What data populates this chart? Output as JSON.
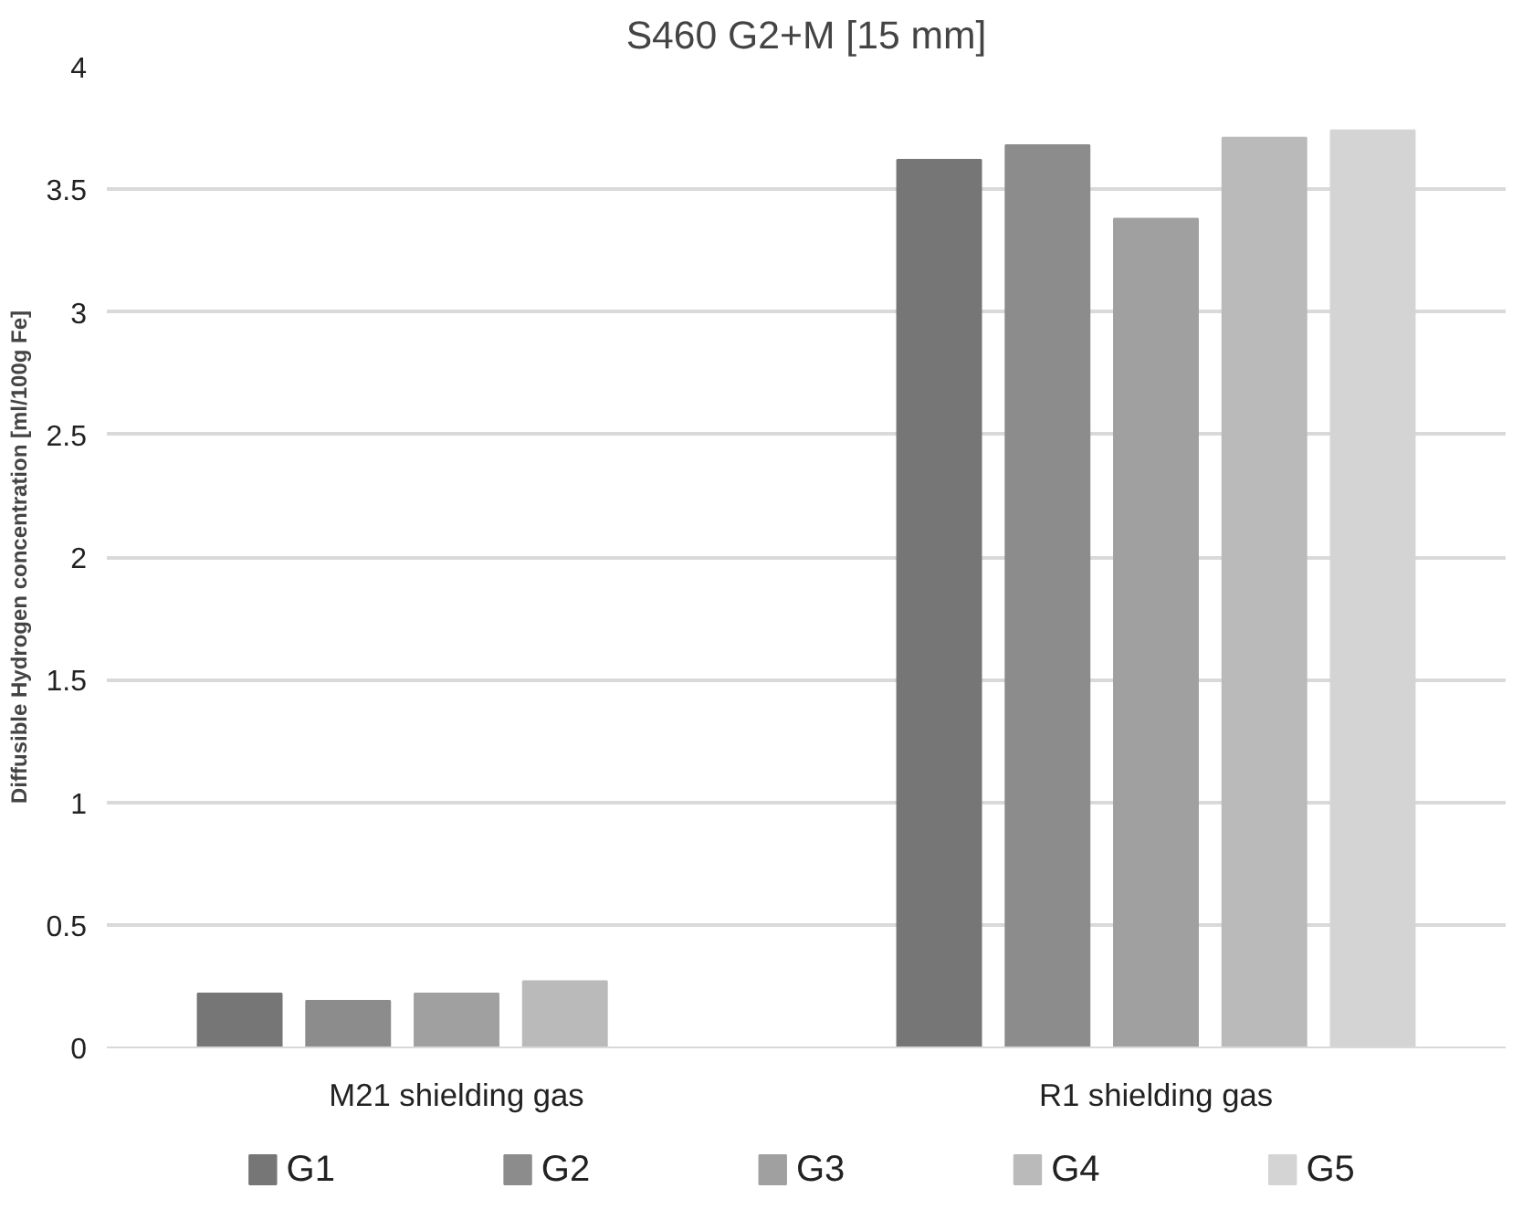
{
  "chart_data": {
    "type": "bar",
    "title": "S460 G2+M [15 mm]",
    "ylabel": "Diffusible Hydrogen concentration [ml/100g Fe]",
    "categories": [
      "M21 shielding gas",
      "R1 shielding gas"
    ],
    "series": [
      {
        "name": "G1",
        "color": "#767676",
        "values": [
          0.22,
          3.62
        ]
      },
      {
        "name": "G2",
        "color": "#8c8c8c",
        "values": [
          0.19,
          3.68
        ]
      },
      {
        "name": "G3",
        "color": "#a0a0a0",
        "values": [
          0.22,
          3.38
        ]
      },
      {
        "name": "G4",
        "color": "#bababa",
        "values": [
          0.27,
          3.71
        ]
      },
      {
        "name": "G5",
        "color": "#d4d4d4",
        "values": [
          null,
          3.74
        ]
      }
    ],
    "ylim": [
      0,
      4
    ],
    "yticks": [
      0,
      0.5,
      1,
      1.5,
      2,
      2.5,
      3,
      3.5,
      4
    ],
    "grid": "y",
    "legend": "bottom"
  }
}
